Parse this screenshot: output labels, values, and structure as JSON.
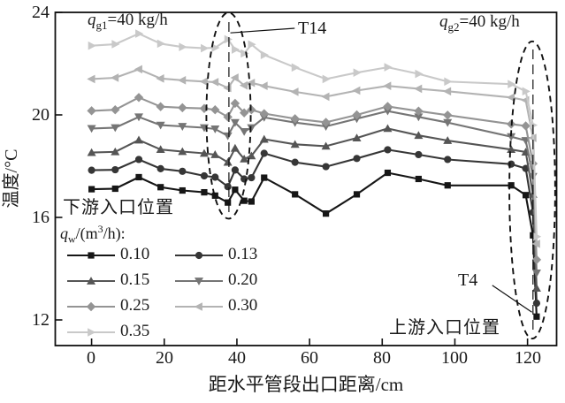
{
  "chart_data": {
    "type": "line",
    "title": "",
    "xlabel": "距水平管段出口距离/cm",
    "ylabel": "温度/°C",
    "xlim": [
      -10,
      128
    ],
    "ylim": [
      11,
      24
    ],
    "xticks": [
      0,
      20,
      40,
      60,
      80,
      100,
      120
    ],
    "yticks": [
      24,
      20,
      16,
      12
    ],
    "grid": false,
    "frame": true,
    "tick_direction": "in",
    "x": [
      0,
      6.5,
      13,
      19,
      25,
      31,
      34,
      37.5,
      39.5,
      42,
      44,
      47.5,
      56,
      64.5,
      73,
      81.5,
      90,
      98,
      115.5,
      119.5,
      121.5,
      122.5
    ],
    "series": [
      {
        "name": "0.10",
        "marker": "square",
        "color": "#161616",
        "values": [
          17.1,
          17.12,
          17.57,
          17.18,
          17.05,
          16.98,
          16.85,
          16.58,
          17.08,
          16.65,
          16.62,
          17.55,
          16.9,
          16.15,
          16.9,
          17.74,
          17.5,
          17.25,
          17.25,
          16.87,
          15.3,
          12.13
        ]
      },
      {
        "name": "0.13",
        "marker": "circle",
        "color": "#363636",
        "values": [
          17.84,
          17.86,
          18.26,
          17.9,
          17.8,
          17.62,
          17.57,
          17.2,
          17.85,
          17.5,
          17.55,
          18.5,
          18.15,
          17.98,
          18.3,
          18.64,
          18.45,
          18.26,
          18.08,
          17.91,
          16.2,
          12.65
        ]
      },
      {
        "name": "0.15",
        "marker": "triangle-up",
        "color": "#555555",
        "values": [
          18.53,
          18.56,
          19.02,
          18.65,
          18.57,
          18.5,
          18.45,
          18.15,
          18.7,
          18.28,
          18.4,
          19.05,
          18.85,
          18.78,
          19.1,
          19.47,
          19.2,
          19.0,
          18.65,
          18.55,
          16.9,
          13.24
        ]
      },
      {
        "name": "0.20",
        "marker": "triangle-down",
        "color": "#757575",
        "values": [
          19.47,
          19.5,
          19.92,
          19.6,
          19.55,
          19.5,
          19.45,
          19.18,
          19.7,
          19.35,
          19.5,
          19.9,
          19.7,
          19.55,
          19.85,
          20.15,
          19.92,
          19.7,
          19.15,
          19.0,
          17.6,
          13.83
        ]
      },
      {
        "name": "0.25",
        "marker": "diamond",
        "color": "#949494",
        "values": [
          20.16,
          20.2,
          20.68,
          20.32,
          20.28,
          20.25,
          20.2,
          19.92,
          20.45,
          20.08,
          20.2,
          20.05,
          19.85,
          19.71,
          20.0,
          20.33,
          20.15,
          19.99,
          19.64,
          19.57,
          18.1,
          14.35
        ]
      },
      {
        "name": "0.30",
        "marker": "triangle-left",
        "color": "#b3b3b3",
        "values": [
          21.4,
          21.45,
          21.78,
          21.42,
          21.35,
          21.3,
          21.28,
          21.05,
          21.45,
          21.15,
          21.25,
          21.13,
          20.9,
          20.71,
          20.95,
          21.13,
          21.02,
          20.92,
          20.68,
          20.57,
          19.1,
          14.97
        ]
      },
      {
        "name": "0.35",
        "marker": "triangle-right",
        "color": "#c9c9c9",
        "values": [
          22.7,
          22.76,
          23.17,
          22.78,
          22.65,
          22.6,
          22.62,
          22.95,
          22.55,
          22.4,
          22.75,
          22.34,
          21.85,
          21.4,
          21.65,
          21.86,
          21.6,
          21.3,
          21.2,
          20.92,
          19.6,
          15.25
        ]
      }
    ],
    "legend": {
      "position": "lower-left-inside",
      "title_parts": {
        "base": "q",
        "sub": "w",
        "mid": "/(m",
        "sup": "3",
        "end": "/h):"
      },
      "rows": [
        [
          0,
          1
        ],
        [
          2,
          3
        ],
        [
          4,
          5
        ],
        [
          6
        ]
      ]
    },
    "annotations": {
      "gas_flow_left": {
        "base": "q",
        "sub": "g1",
        "rest": "=40 kg/h"
      },
      "gas_flow_right": {
        "base": "q",
        "sub": "g2",
        "rest": "=40 kg/h"
      },
      "sensor_t14": "T14",
      "sensor_t4": "T4",
      "downstream_inlet": "下游入口位置",
      "upstream_inlet": "上游入口位置",
      "ellipses": [
        {
          "cx": 37.7,
          "cy": 19.97,
          "rx": 6.1,
          "ry": 4.02
        },
        {
          "cx": 121.3,
          "cy": 17.07,
          "rx": 6.3,
          "ry": 5.8
        }
      ],
      "dashed_lines": [
        {
          "x": 37.8,
          "y1": 23.62,
          "y2": 16.05
        },
        {
          "x": 121.5,
          "y1": 22.55,
          "y2": 11.55
        }
      ],
      "leader_lines": [
        {
          "x1": 38.2,
          "y1": 23.2,
          "x2": 55.9,
          "y2": 23.38
        },
        {
          "x1": 110.3,
          "y1": 13.35,
          "x2": 121.2,
          "y2": 12.3
        }
      ]
    }
  }
}
